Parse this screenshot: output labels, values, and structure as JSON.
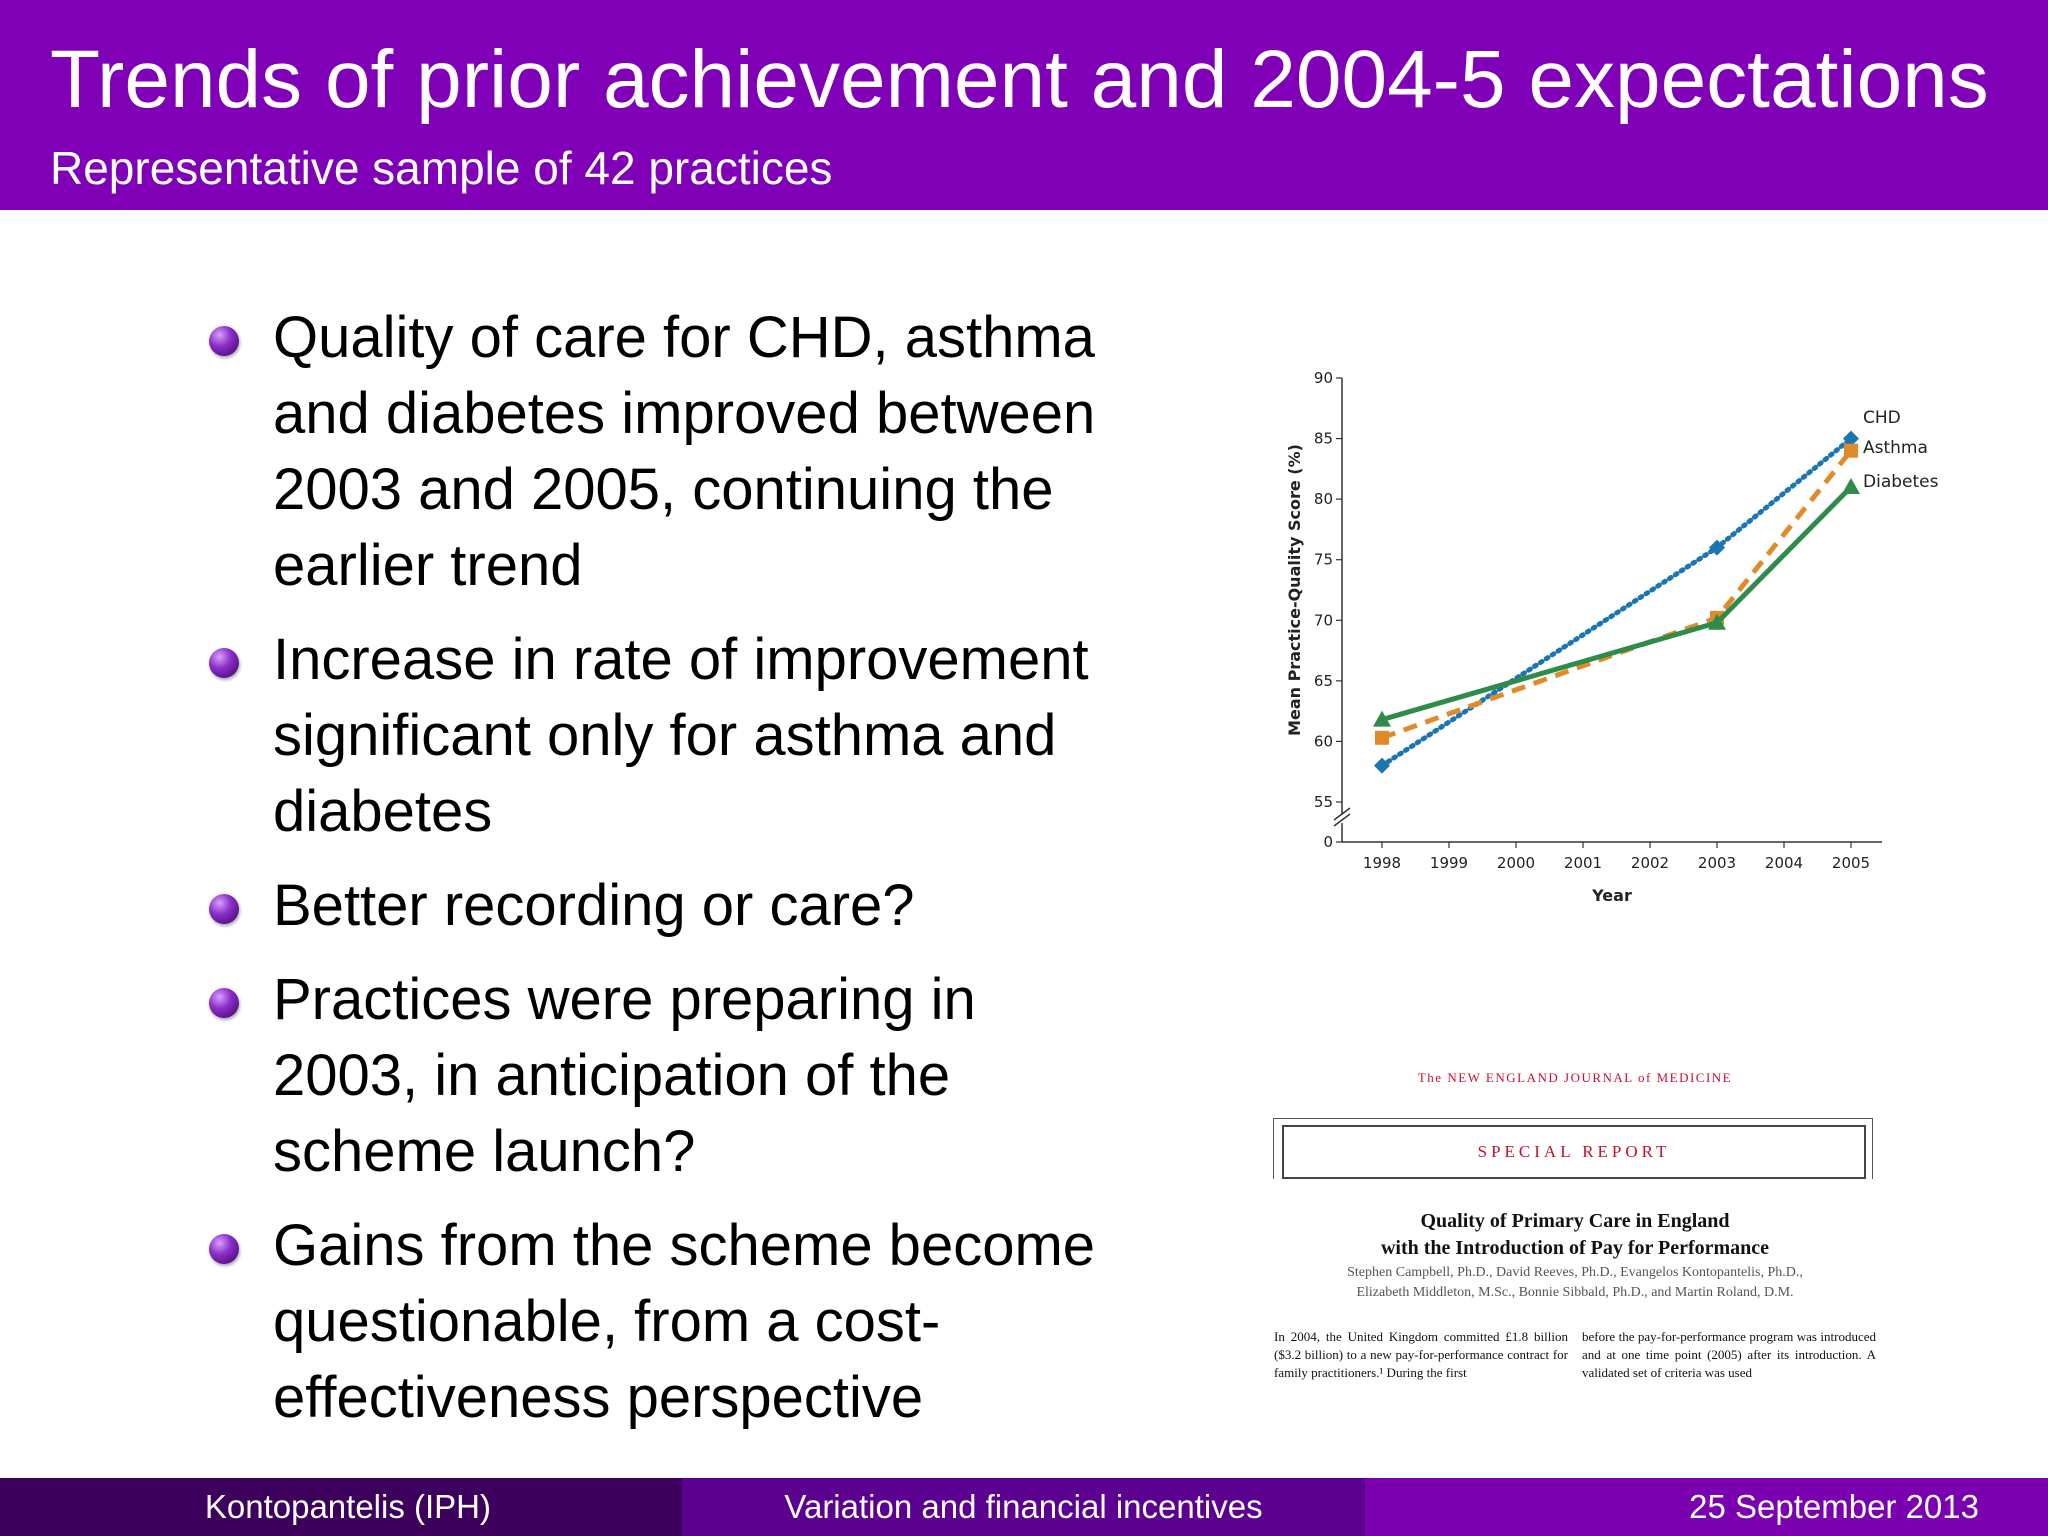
{
  "header": {
    "title": "Trends of prior achievement and 2004-5 expectations",
    "subtitle": "Representative sample of 42 practices",
    "background": "#8000b8"
  },
  "bullets": [
    {
      "text": "Quality of care for CHD, asthma and diabetes improved between 2003 and 2005, continuing the earlier trend"
    },
    {
      "text": "Increase in rate of improvement significant only for asthma and diabetes"
    },
    {
      "text": "Better recording or care?"
    },
    {
      "text": "Practices were preparing in 2003, in anticipation of the scheme launch?"
    },
    {
      "text": "Gains from the scheme become questionable, from a cost-effectiveness perspective"
    }
  ],
  "chart_data": {
    "type": "line",
    "title": "",
    "xlabel": "Year",
    "ylabel": "Mean Practice-Quality Score (%)",
    "x_ticks": [
      "1998",
      "1999",
      "2000",
      "2001",
      "2002",
      "2003",
      "2004",
      "2005"
    ],
    "y_ticks": [
      "0",
      "55",
      "60",
      "65",
      "70",
      "75",
      "80",
      "85",
      "90"
    ],
    "ylim": [
      55,
      90
    ],
    "axis_break": true,
    "grid": false,
    "legend": "end-of-line labels",
    "series": [
      {
        "name": "CHD",
        "color": "#1a75b0",
        "line_style": "dotted",
        "marker": "diamond",
        "x": [
          1998,
          2003,
          2005
        ],
        "values": [
          58,
          76,
          85
        ]
      },
      {
        "name": "Asthma",
        "color": "#e08a2a",
        "line_style": "dashed",
        "marker": "square",
        "x": [
          1998,
          2003,
          2005
        ],
        "values": [
          60.3,
          70.2,
          84
        ]
      },
      {
        "name": "Diabetes",
        "color": "#2e8b4a",
        "line_style": "solid",
        "marker": "triangle",
        "x": [
          1998,
          2003,
          2005
        ],
        "values": [
          61.8,
          69.8,
          81
        ]
      }
    ]
  },
  "journal": {
    "masthead": "The NEW ENGLAND JOURNAL of MEDICINE",
    "section": "SPECIAL REPORT",
    "title_line1": "Quality of Primary Care in England",
    "title_line2": "with the Introduction of Pay for Performance",
    "authors_line1": "Stephen Campbell, Ph.D., David Reeves, Ph.D., Evangelos Kontopantelis, Ph.D.,",
    "authors_line2": "Elizabeth Middleton, M.Sc., Bonnie Sibbald, Ph.D., and Martin Roland, D.M.",
    "col1": "In 2004, the United Kingdom committed £1.8 billion ($3.2 billion) to a new pay-for-performance contract for family practitioners.¹ During the first",
    "col2": "before the pay-for-performance program was introduced and at one time point (2005) after its introduction. A validated set of criteria was used"
  },
  "footer": {
    "left": "Kontopantelis  (IPH)",
    "center": "Variation and financial incentives",
    "right": "25 September 2013"
  }
}
